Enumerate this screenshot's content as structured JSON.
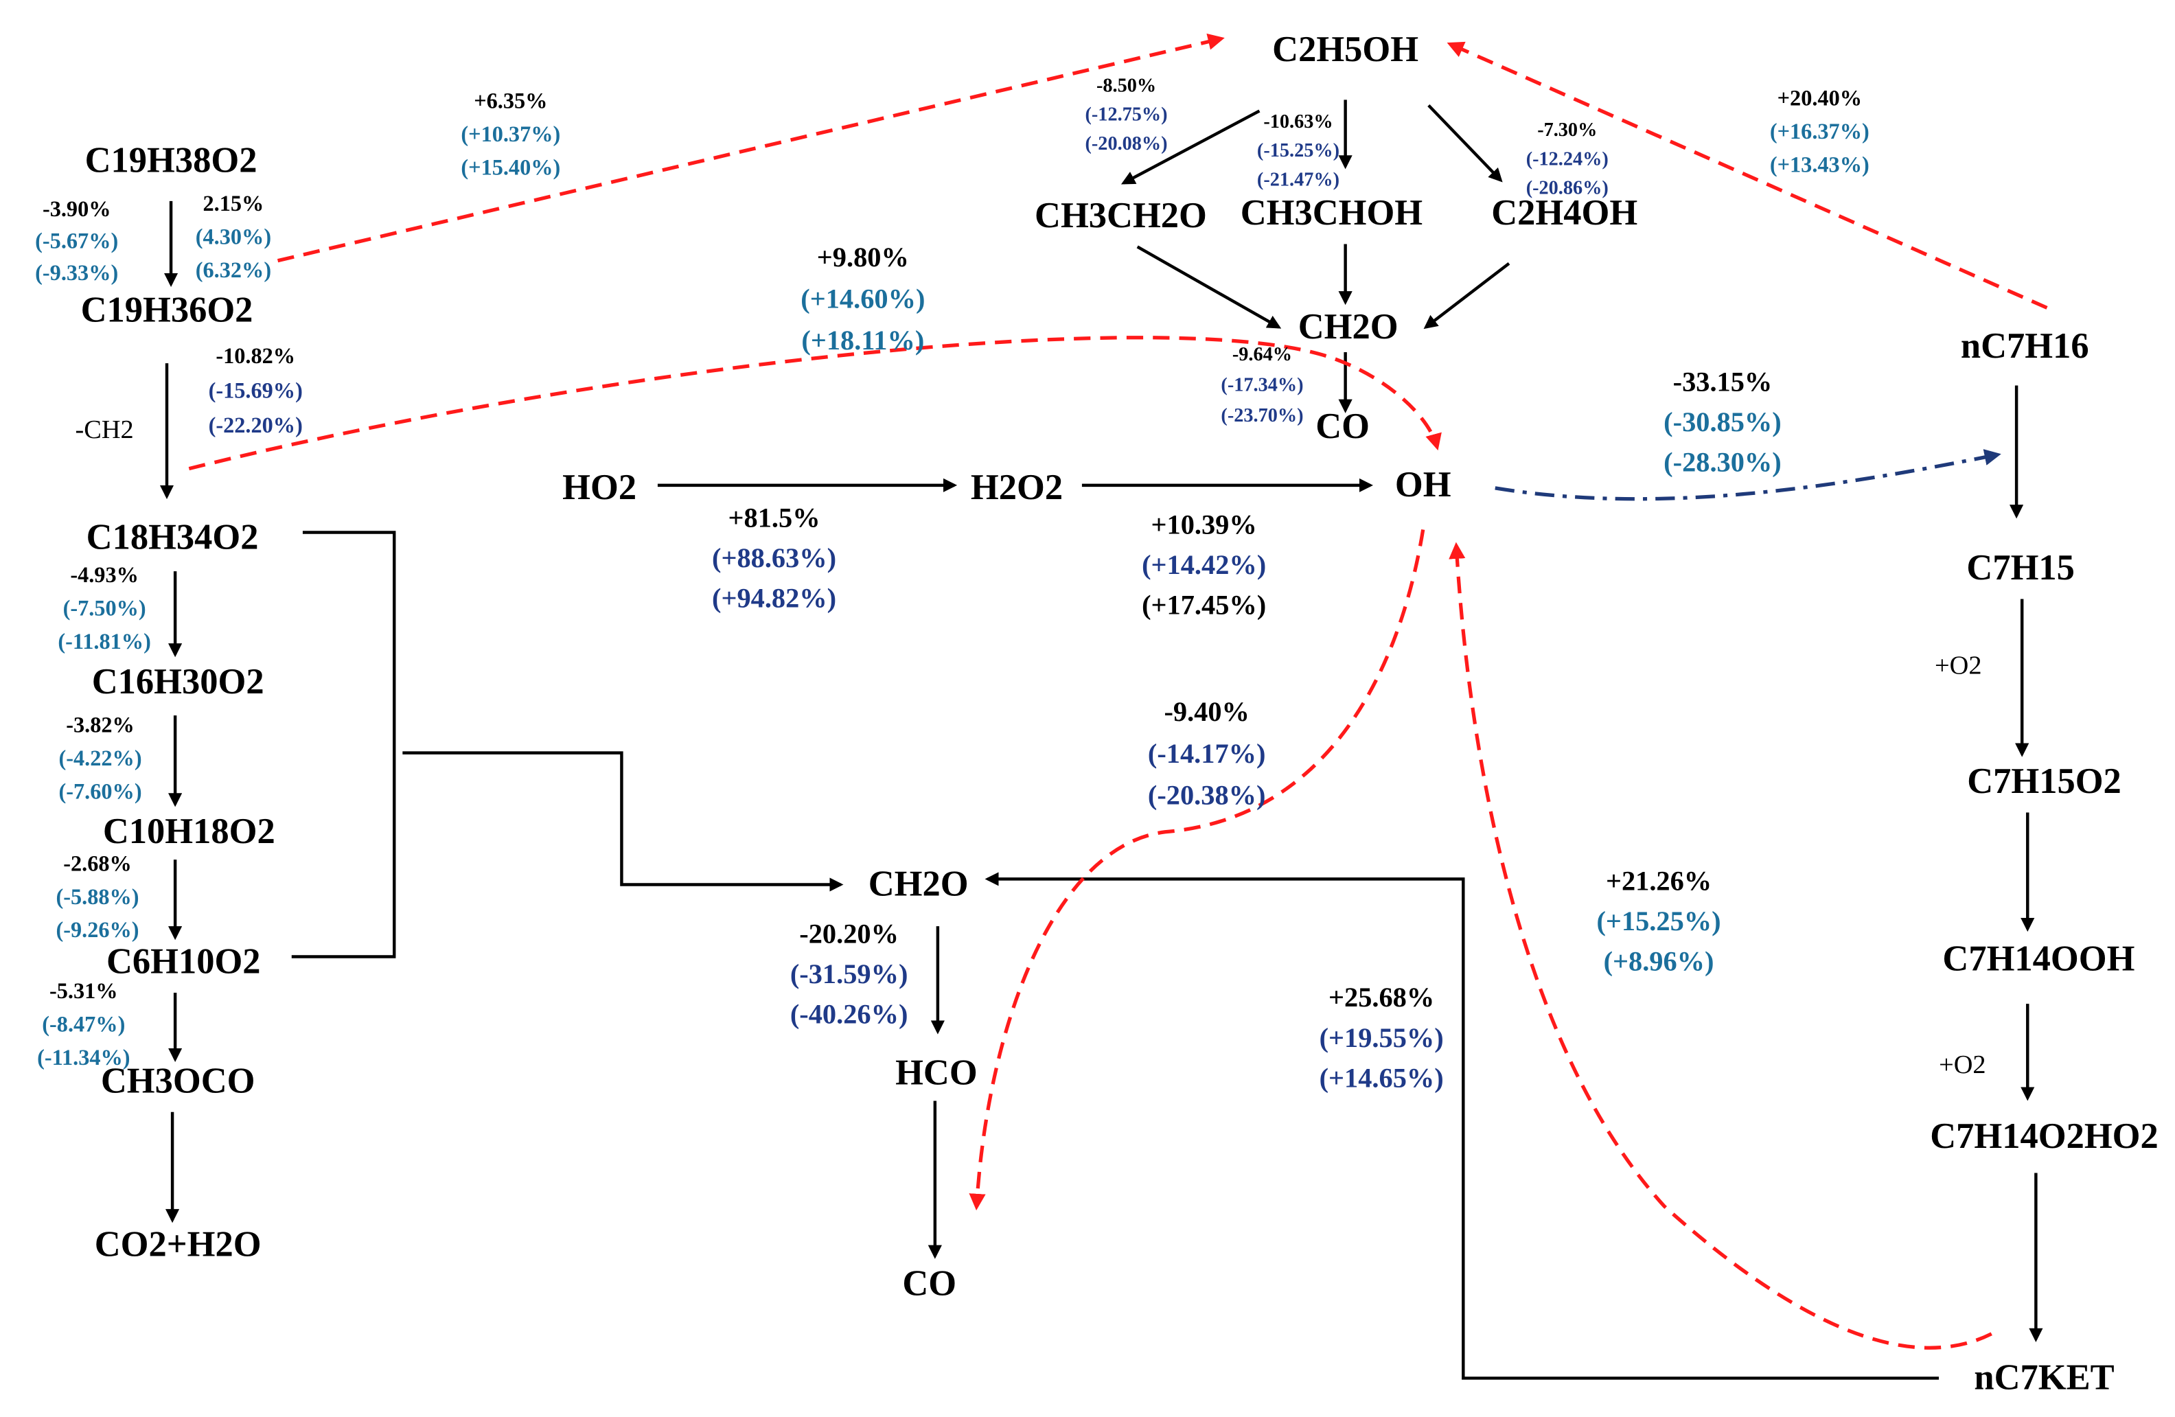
{
  "colors": {
    "black": "#000000",
    "teal_blue": "#1b6f9c",
    "navy": "#1f3a88",
    "red_dashed": "#ff1a1a",
    "navy_dashdot": "#1f3a7a"
  },
  "species": {
    "c2h5oh": "C2H5OH",
    "ch3ch2o": "CH3CH2O",
    "ch3choh": "CH3CHOH",
    "c2h4oh": "C2H4OH",
    "ch2o_top": "CH2O",
    "co_top": "CO",
    "c19h38o2": "C19H38O2",
    "c19h36o2": "C19H36O2",
    "c18h34o2": "C18H34O2",
    "c16h30o2": "C16H30O2",
    "c10h18o2": "C10H18O2",
    "c6h10o2": "C6H10O2",
    "ch3oco": "CH3OCO",
    "co2h2o": "CO2+H2O",
    "ho2": "HO2",
    "h2o2": "H2O2",
    "oh": "OH",
    "ch2o_mid": "CH2O",
    "hco": "HCO",
    "co_bottom": "CO",
    "nc7h16": "nC7H16",
    "c7h15": "C7H15",
    "c7h15o2": "C7H15O2",
    "c7h14ooh": "C7H14OOH",
    "c7h14o2ho2": "C7H14O2HO2",
    "nc7ket": "nC7KET"
  },
  "side_labels": {
    "minus_ch2": "-CH2",
    "plus_o2_a": "+O2",
    "plus_o2_b": "+O2"
  },
  "percent_groups": {
    "g_c19h38o2_left": [
      "-3.90%",
      "(-5.67%)",
      "(-9.33%)"
    ],
    "g_c19h38o2_right": [
      "2.15%",
      "(4.30%)",
      "(6.32%)"
    ],
    "g_to_c2h5oh_left": [
      "+6.35%",
      "(+10.37%)",
      "(+15.40%)"
    ],
    "g_ch3ch2o": [
      "-8.50%",
      "(-12.75%)",
      "(-20.08%)"
    ],
    "g_ch3choh": [
      "-10.63%",
      "(-15.25%)",
      "(-21.47%)"
    ],
    "g_c2h4oh": [
      "-7.30%",
      "(-12.24%)",
      "(-20.86%)"
    ],
    "g_to_c2h5oh_right": [
      "+20.40%",
      "(+16.37%)",
      "(+13.43%)"
    ],
    "g_to_oh_top": [
      "+9.80%",
      "(+14.60%)",
      "(+18.11%)"
    ],
    "g_c19h36o2": [
      "-10.82%",
      "(-15.69%)",
      "(-22.20%)"
    ],
    "g_ch2o_co_top": [
      "-9.64%",
      "(-17.34%)",
      "(-23.70%)"
    ],
    "g_oh_nc7h16": [
      "-33.15%",
      "(-30.85%)",
      "(-28.30%)"
    ],
    "g_ho2_h2o2": [
      "+81.5%",
      "(+88.63%)",
      "(+94.82%)"
    ],
    "g_h2o2_oh": [
      "+10.39%",
      "(+14.42%)",
      "(+17.45%)"
    ],
    "g_c18h34o2": [
      "-4.93%",
      "(-7.50%)",
      "(-11.81%)"
    ],
    "g_c16h30o2": [
      "-3.82%",
      "(-4.22%)",
      "(-7.60%)"
    ],
    "g_c10h18o2": [
      "-2.68%",
      "(-5.88%)",
      "(-9.26%)"
    ],
    "g_c6h10o2": [
      "-5.31%",
      "(-8.47%)",
      "(-11.34%)"
    ],
    "g_oh_hco": [
      "-9.40%",
      "(-14.17%)",
      "(-20.38%)"
    ],
    "g_ch2o_hco": [
      "-20.20%",
      "(-31.59%)",
      "(-40.26%)"
    ],
    "g_ket_oh": [
      "+21.26%",
      "(+15.25%)",
      "(+8.96%)"
    ],
    "g_ket_ch2o": [
      "+25.68%",
      "(+19.55%)",
      "(+14.65%)"
    ]
  }
}
